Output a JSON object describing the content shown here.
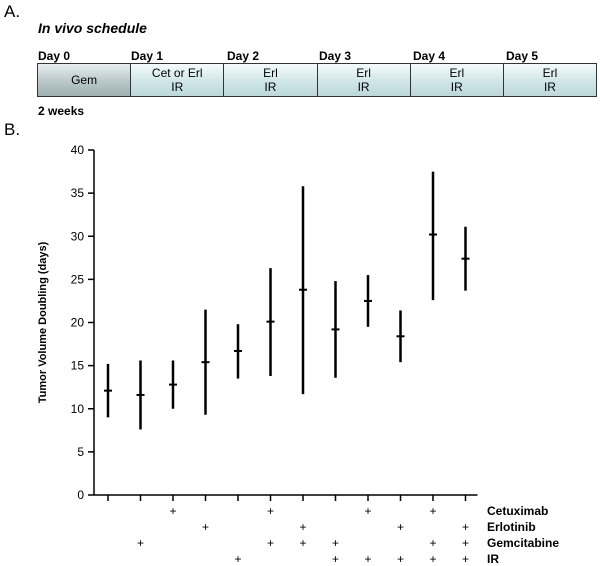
{
  "panel_a": {
    "label": "A.",
    "title": "In vivo schedule",
    "days": [
      "Day 0",
      "Day 1",
      "Day 2",
      "Day 3",
      "Day 4",
      "Day 5"
    ],
    "segments": [
      {
        "line1": "Gem",
        "line2": ""
      },
      {
        "line1": "Cet or Erl",
        "line2": "IR"
      },
      {
        "line1": "Erl",
        "line2": "IR"
      },
      {
        "line1": "Erl",
        "line2": "IR"
      },
      {
        "line1": "Erl",
        "line2": "IR"
      },
      {
        "line1": "Erl",
        "line2": "IR"
      }
    ],
    "note": "2 weeks"
  },
  "panel_b": {
    "label": "B."
  },
  "chart_data": {
    "type": "scatter",
    "ylabel": "Tumor Volume Doubling (days)",
    "ylim": [
      0,
      40
    ],
    "yticks": [
      0,
      5,
      10,
      15,
      20,
      25,
      30,
      35,
      40
    ],
    "grid": false,
    "points": [
      {
        "mean": 12.1,
        "low": 9.0,
        "high": 15.2
      },
      {
        "mean": 11.6,
        "low": 7.6,
        "high": 15.6
      },
      {
        "mean": 12.8,
        "low": 10.0,
        "high": 15.6
      },
      {
        "mean": 15.4,
        "low": 9.3,
        "high": 21.5
      },
      {
        "mean": 16.7,
        "low": 13.5,
        "high": 19.8
      },
      {
        "mean": 20.1,
        "low": 13.8,
        "high": 26.3
      },
      {
        "mean": 23.8,
        "low": 11.7,
        "high": 35.8
      },
      {
        "mean": 19.2,
        "low": 13.6,
        "high": 24.8
      },
      {
        "mean": 22.5,
        "low": 19.5,
        "high": 25.5
      },
      {
        "mean": 18.4,
        "low": 15.4,
        "high": 21.4
      },
      {
        "mean": 30.2,
        "low": 22.6,
        "high": 37.5
      },
      {
        "mean": 27.4,
        "low": 23.7,
        "high": 31.1
      }
    ],
    "treatment_table": {
      "rows": [
        {
          "name": "Cetuximab",
          "marks": [
            "",
            "",
            "+",
            "",
            "",
            "+",
            "",
            "",
            "+",
            "",
            "+",
            ""
          ]
        },
        {
          "name": "Erlotinib",
          "marks": [
            "",
            "",
            "",
            "+",
            "",
            "",
            "+",
            "",
            "",
            "+",
            "",
            "+"
          ]
        },
        {
          "name": "Gemcitabine",
          "marks": [
            "",
            "+",
            "",
            "",
            "",
            "+",
            "+",
            "+",
            "",
            "",
            "+",
            "+"
          ]
        },
        {
          "name": "IR",
          "marks": [
            "",
            "",
            "",
            "",
            "+",
            "",
            "",
            "+",
            "+",
            "+",
            "+",
            "+"
          ]
        }
      ]
    }
  }
}
